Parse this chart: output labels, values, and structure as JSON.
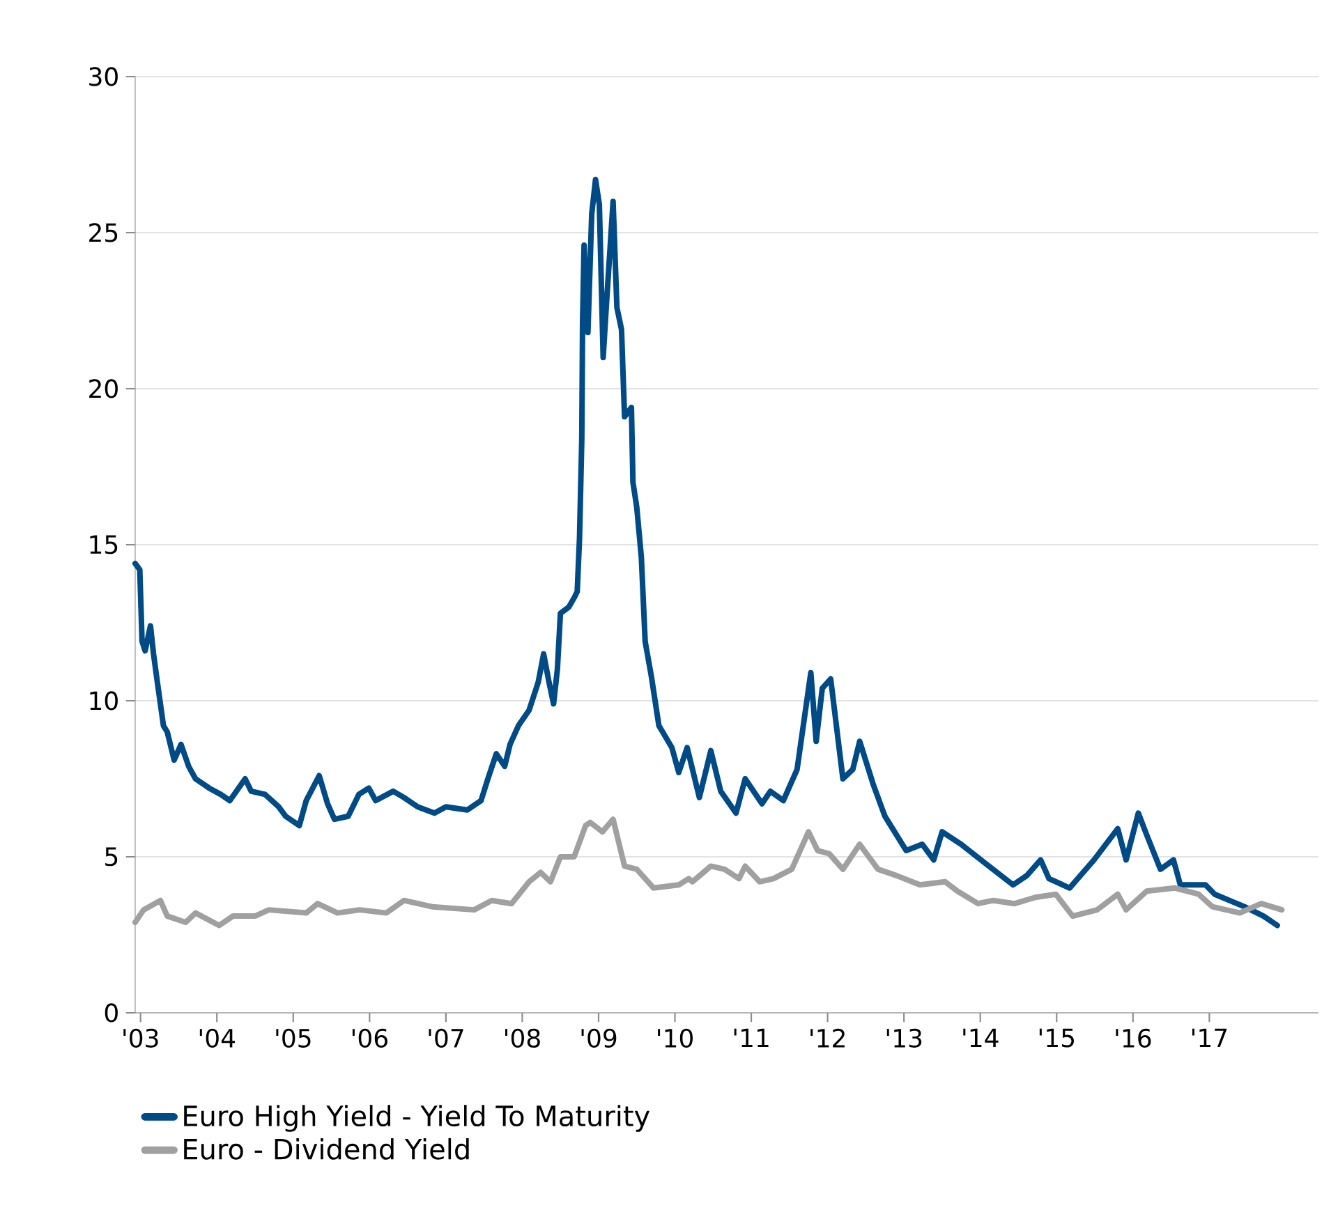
{
  "chart_data": {
    "type": "line",
    "series": [
      {
        "name": "Euro High Yield - Yield To Maturity",
        "color": "#004a85",
        "x": [
          2002.93,
          2002.99,
          2003.02,
          2003.06,
          2003.13,
          2003.17,
          2003.22,
          2003.3,
          2003.35,
          2003.44,
          2003.53,
          2003.63,
          2003.72,
          2003.9,
          2004.05,
          2004.17,
          2004.37,
          2004.45,
          2004.63,
          2004.81,
          2004.9,
          2005.08,
          2005.17,
          2005.34,
          2005.45,
          2005.54,
          2005.72,
          2005.86,
          2005.99,
          2006.08,
          2006.31,
          2006.45,
          2006.63,
          2006.85,
          2007.0,
          2007.28,
          2007.46,
          2007.55,
          2007.66,
          2007.77,
          2007.84,
          2007.95,
          2008.09,
          2008.21,
          2008.28,
          2008.35,
          2008.41,
          2008.46,
          2008.5,
          2008.61,
          2008.68,
          2008.72,
          2008.75,
          2008.78,
          2008.79,
          2008.81,
          2008.86,
          2008.91,
          2008.96,
          2009.01,
          2009.06,
          2009.1,
          2009.19,
          2009.24,
          2009.3,
          2009.34,
          2009.43,
          2009.45,
          2009.5,
          2009.56,
          2009.61,
          2009.69,
          2009.79,
          2009.96,
          2010.05,
          2010.16,
          2010.23,
          2010.32,
          2010.47,
          2010.6,
          2010.8,
          2010.92,
          2011.14,
          2011.25,
          2011.42,
          2011.6,
          2011.78,
          2011.85,
          2011.93,
          2012.04,
          2012.2,
          2012.33,
          2012.42,
          2012.6,
          2012.75,
          2013.03,
          2013.24,
          2013.39,
          2013.5,
          2013.75,
          2014.06,
          2014.43,
          2014.61,
          2014.79,
          2014.9,
          2015.17,
          2015.49,
          2015.8,
          2015.91,
          2016.07,
          2016.18,
          2016.36,
          2016.53,
          2016.62,
          2016.95,
          2017.07,
          2017.46,
          2017.71,
          2017.89
        ],
        "values": [
          14.4,
          14.2,
          11.9,
          11.6,
          12.4,
          11.5,
          10.6,
          9.2,
          9.0,
          8.1,
          8.6,
          7.9,
          7.5,
          7.2,
          7.0,
          6.8,
          7.5,
          7.1,
          7.0,
          6.6,
          6.3,
          6.0,
          6.8,
          7.6,
          6.7,
          6.2,
          6.3,
          7.0,
          7.2,
          6.8,
          7.1,
          6.9,
          6.6,
          6.4,
          6.6,
          6.5,
          6.8,
          7.5,
          8.3,
          7.9,
          8.6,
          9.2,
          9.7,
          10.6,
          11.5,
          10.6,
          9.9,
          11.0,
          12.8,
          13.0,
          13.3,
          13.5,
          15.2,
          18.4,
          22.1,
          24.6,
          21.8,
          25.6,
          26.7,
          25.9,
          21.0,
          22.6,
          26.0,
          22.6,
          21.9,
          19.1,
          19.4,
          17.0,
          16.2,
          14.6,
          11.9,
          10.8,
          9.2,
          8.5,
          7.7,
          8.5,
          7.8,
          6.9,
          8.4,
          7.1,
          6.4,
          7.5,
          6.7,
          7.1,
          6.8,
          7.8,
          10.9,
          8.7,
          10.4,
          10.7,
          7.5,
          7.8,
          8.7,
          7.3,
          6.3,
          5.2,
          5.4,
          4.9,
          5.8,
          5.4,
          4.8,
          4.1,
          4.4,
          4.9,
          4.3,
          4.0,
          4.9,
          5.9,
          4.9,
          6.4,
          5.7,
          4.6,
          4.9,
          4.1,
          4.1,
          3.8,
          3.4,
          3.1,
          2.8
        ]
      },
      {
        "name": "Euro - Dividend Yield",
        "color": "#a0a0a0",
        "x": [
          2002.93,
          2003.04,
          2003.26,
          2003.35,
          2003.59,
          2003.72,
          2004.03,
          2004.21,
          2004.5,
          2004.68,
          2005.17,
          2005.32,
          2005.58,
          2005.87,
          2006.22,
          2006.45,
          2006.82,
          2007.37,
          2007.6,
          2007.86,
          2008.09,
          2008.24,
          2008.37,
          2008.5,
          2008.68,
          2008.83,
          2008.89,
          2009.05,
          2009.19,
          2009.34,
          2009.5,
          2009.72,
          2010.05,
          2010.18,
          2010.23,
          2010.47,
          2010.65,
          2010.84,
          2010.92,
          2011.11,
          2011.29,
          2011.53,
          2011.75,
          2011.87,
          2012.02,
          2012.2,
          2012.42,
          2012.66,
          2012.9,
          2013.21,
          2013.54,
          2013.7,
          2013.97,
          2014.17,
          2014.45,
          2014.72,
          2014.99,
          2015.21,
          2015.53,
          2015.8,
          2015.91,
          2016.18,
          2016.55,
          2016.86,
          2017.04,
          2017.4,
          2017.68,
          2017.95
        ],
        "values": [
          2.9,
          3.3,
          3.6,
          3.1,
          2.9,
          3.2,
          2.8,
          3.1,
          3.1,
          3.3,
          3.2,
          3.5,
          3.2,
          3.3,
          3.2,
          3.6,
          3.4,
          3.3,
          3.6,
          3.5,
          4.2,
          4.5,
          4.2,
          5.0,
          5.0,
          6.0,
          6.1,
          5.8,
          6.2,
          4.7,
          4.6,
          4.0,
          4.1,
          4.3,
          4.2,
          4.7,
          4.6,
          4.3,
          4.7,
          4.2,
          4.3,
          4.6,
          5.8,
          5.2,
          5.1,
          4.6,
          5.4,
          4.6,
          4.4,
          4.1,
          4.2,
          3.9,
          3.5,
          3.6,
          3.5,
          3.7,
          3.8,
          3.1,
          3.3,
          3.8,
          3.3,
          3.9,
          4.0,
          3.8,
          3.4,
          3.2,
          3.5,
          3.3
        ]
      }
    ],
    "xlim": [
      2002.93,
      2018.43
    ],
    "ylim": [
      0,
      30
    ],
    "xticks": [
      {
        "value": 2003,
        "label": "'03"
      },
      {
        "value": 2004,
        "label": "'04"
      },
      {
        "value": 2005,
        "label": "'05"
      },
      {
        "value": 2006,
        "label": "'06"
      },
      {
        "value": 2007,
        "label": "'07"
      },
      {
        "value": 2008,
        "label": "'08"
      },
      {
        "value": 2009,
        "label": "'09"
      },
      {
        "value": 2010,
        "label": "'10"
      },
      {
        "value": 2011,
        "label": "'11"
      },
      {
        "value": 2012,
        "label": "'12"
      },
      {
        "value": 2013,
        "label": "'13"
      },
      {
        "value": 2014,
        "label": "'14"
      },
      {
        "value": 2015,
        "label": "'15"
      },
      {
        "value": 2016,
        "label": "'16"
      },
      {
        "value": 2017,
        "label": "'17"
      }
    ],
    "yticks": [
      0,
      5,
      10,
      15,
      20,
      25,
      30
    ],
    "grid": "y",
    "legend": "bottom",
    "marker": "none",
    "line_style": "solid"
  }
}
